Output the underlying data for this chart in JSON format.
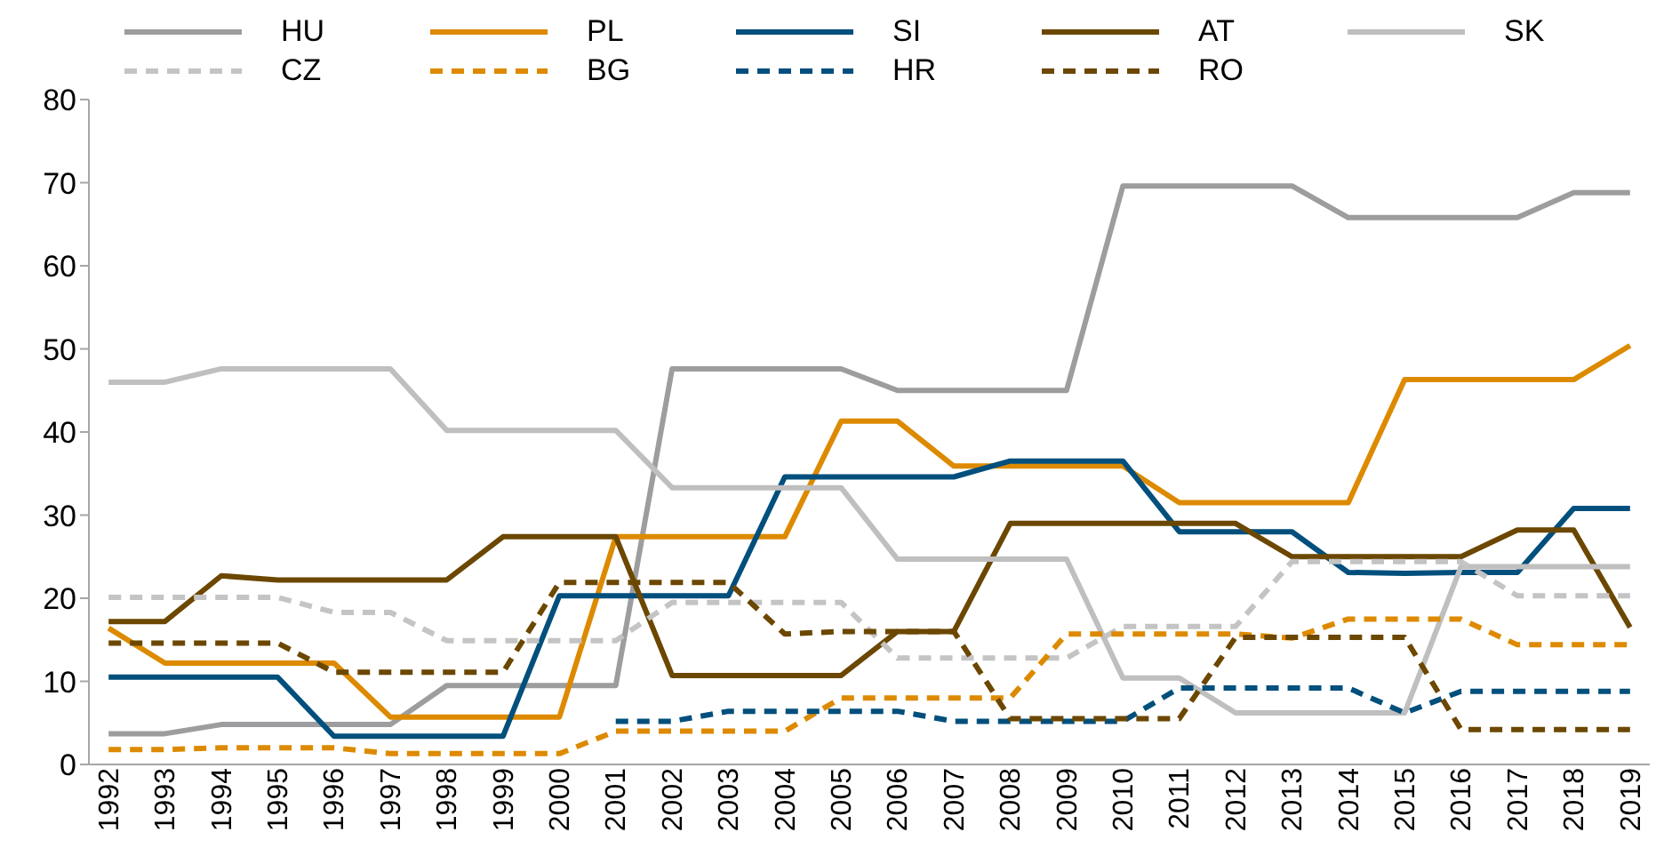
{
  "chart_data": {
    "type": "line",
    "categories": [
      "1992",
      "1993",
      "1994",
      "1995",
      "1996",
      "1997",
      "1998",
      "1999",
      "2000",
      "2001",
      "2002",
      "2003",
      "2004",
      "2005",
      "2006",
      "2007",
      "2008",
      "2009",
      "2010",
      "2011",
      "2012",
      "2013",
      "2014",
      "2015",
      "2016",
      "2017",
      "2018",
      "2019"
    ],
    "ylim": [
      0,
      80
    ],
    "yticks": [
      0,
      10,
      20,
      30,
      40,
      50,
      60,
      70,
      80
    ],
    "grid": false,
    "legend": "top",
    "marker": "none",
    "series": [
      {
        "name": "HU",
        "color": "#9d9d9f",
        "line_style": "solid",
        "values": [
          3.7,
          3.7,
          4.8,
          4.8,
          4.8,
          4.8,
          9.5,
          9.5,
          9.5,
          9.5,
          47.6,
          47.6,
          47.6,
          47.6,
          45,
          45,
          45,
          45,
          69.6,
          69.6,
          69.6,
          69.6,
          65.8,
          65.8,
          65.8,
          65.8,
          68.8,
          68.8
        ]
      },
      {
        "name": "PL",
        "color": "#dd8a00",
        "line_style": "solid",
        "values": [
          16.4,
          12.2,
          12.2,
          12.2,
          12.2,
          5.7,
          5.7,
          5.7,
          5.7,
          27.4,
          27.4,
          27.4,
          27.4,
          41.3,
          41.3,
          35.9,
          35.9,
          35.9,
          35.9,
          31.5,
          31.5,
          31.5,
          31.5,
          46.3,
          46.3,
          46.3,
          46.3,
          50.4
        ]
      },
      {
        "name": "SI",
        "color": "#004f7c",
        "line_style": "solid",
        "values": [
          10.5,
          10.5,
          10.5,
          10.5,
          3.4,
          3.4,
          3.4,
          3.4,
          20.3,
          20.3,
          20.3,
          20.3,
          34.6,
          34.6,
          34.6,
          34.6,
          36.5,
          36.5,
          36.5,
          28,
          28,
          28,
          23.1,
          23,
          23.1,
          23.1,
          30.8,
          30.8
        ]
      },
      {
        "name": "AT",
        "color": "#6b4700",
        "line_style": "solid",
        "values": [
          17.2,
          17.2,
          22.7,
          22.2,
          22.2,
          22.2,
          22.2,
          27.4,
          27.4,
          27.4,
          10.7,
          10.7,
          10.7,
          10.7,
          16,
          16,
          29,
          29,
          29,
          29,
          29,
          25,
          25,
          25,
          25,
          28.2,
          28.2,
          16.5
        ]
      },
      {
        "name": "SK",
        "color": "#bfbfbf",
        "line_style": "solid",
        "values": [
          46,
          46,
          47.6,
          47.6,
          47.6,
          47.6,
          40.2,
          40.2,
          40.2,
          40.2,
          33.3,
          33.3,
          33.3,
          33.3,
          24.7,
          24.7,
          24.7,
          24.7,
          10.4,
          10.4,
          6.2,
          6.2,
          6.2,
          6.2,
          23.8,
          23.8,
          23.8,
          23.8
        ]
      },
      {
        "name": "CZ",
        "color": "#c4c4c4",
        "line_style": "dashed",
        "values": [
          20.1,
          20.1,
          20.1,
          20.1,
          18.3,
          18.3,
          14.9,
          14.9,
          14.9,
          14.9,
          19.5,
          19.5,
          19.5,
          19.5,
          12.8,
          12.8,
          12.8,
          12.8,
          16.6,
          16.6,
          16.6,
          24.4,
          24.4,
          24.4,
          24.4,
          20.3,
          20.3,
          20.3
        ]
      },
      {
        "name": "BG",
        "color": "#dd8a00",
        "line_style": "dashed",
        "values": [
          1.8,
          1.8,
          2,
          2,
          2,
          1.3,
          1.3,
          1.3,
          1.3,
          4,
          4,
          4,
          4,
          8,
          8,
          8,
          8,
          15.7,
          15.7,
          15.7,
          15.7,
          15.2,
          17.5,
          17.5,
          17.5,
          14.4,
          14.4,
          14.4
        ]
      },
      {
        "name": "HR",
        "color": "#004f7c",
        "line_style": "dashed",
        "values": [
          null,
          null,
          null,
          null,
          null,
          null,
          null,
          null,
          null,
          5.2,
          5.2,
          6.4,
          6.4,
          6.4,
          6.4,
          5.2,
          5.2,
          5.2,
          5.2,
          9.2,
          9.2,
          9.2,
          9.2,
          6.2,
          8.8,
          8.8,
          8.8,
          8.8
        ]
      },
      {
        "name": "RO",
        "color": "#6b4700",
        "line_style": "dashed",
        "values": [
          14.6,
          14.6,
          14.6,
          14.6,
          11.1,
          11.1,
          11.1,
          11.1,
          21.9,
          21.9,
          21.9,
          21.9,
          15.7,
          16,
          16,
          16,
          5.5,
          5.5,
          5.5,
          5.5,
          15.3,
          15.3,
          15.3,
          15.3,
          4.2,
          4.2,
          4.2,
          4.2
        ]
      }
    ]
  }
}
